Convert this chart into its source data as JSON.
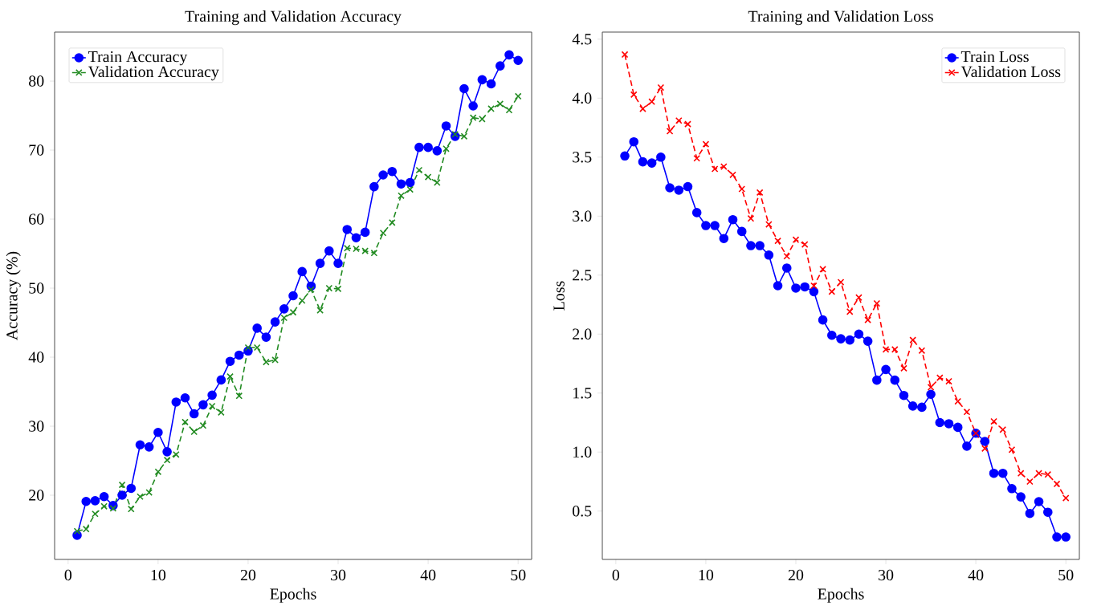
{
  "chart_data": [
    {
      "type": "line",
      "title": "Training and Validation Accuracy",
      "xlabel": "Epochs",
      "ylabel": "Accuracy (%)",
      "x": [
        1,
        2,
        3,
        4,
        5,
        6,
        7,
        8,
        9,
        10,
        11,
        12,
        13,
        14,
        15,
        16,
        17,
        18,
        19,
        20,
        21,
        22,
        23,
        24,
        25,
        26,
        27,
        28,
        29,
        30,
        31,
        32,
        33,
        34,
        35,
        36,
        37,
        38,
        39,
        40,
        41,
        42,
        43,
        44,
        45,
        46,
        47,
        48,
        49,
        50
      ],
      "series": [
        {
          "name": "Train Accuracy",
          "color": "#0000ff",
          "marker": "circle",
          "line_style": "solid",
          "values": [
            14.2,
            19.1,
            19.2,
            19.8,
            18.5,
            20.0,
            21.0,
            27.3,
            27.0,
            29.1,
            26.3,
            33.5,
            34.1,
            31.8,
            33.1,
            34.5,
            36.7,
            39.4,
            40.3,
            40.9,
            44.2,
            42.9,
            45.1,
            47.0,
            48.9,
            52.4,
            50.3,
            53.6,
            55.4,
            53.6,
            58.5,
            57.3,
            58.1,
            64.7,
            66.4,
            66.9,
            65.1,
            65.3,
            70.4,
            70.4,
            69.9,
            73.5,
            72.0,
            78.9,
            76.4,
            80.2,
            79.6,
            82.2,
            83.8,
            83.0
          ]
        },
        {
          "name": "Validation Accuracy",
          "color": "#228b22",
          "marker": "cross",
          "line_style": "dashed",
          "values": [
            14.8,
            15.1,
            17.3,
            18.4,
            18.1,
            21.5,
            18.0,
            19.8,
            20.4,
            23.4,
            25.1,
            25.9,
            30.6,
            29.2,
            30.1,
            32.9,
            32.0,
            37.2,
            34.4,
            41.4,
            41.4,
            39.3,
            39.6,
            45.7,
            46.5,
            48.2,
            49.8,
            46.8,
            50.0,
            49.9,
            55.8,
            55.7,
            55.4,
            55.1,
            58.0,
            59.5,
            63.4,
            64.3,
            67.1,
            66.1,
            65.3,
            70.2,
            72.3,
            72.0,
            74.7,
            74.5,
            76.0,
            76.7,
            75.8,
            77.8
          ]
        }
      ],
      "xlim": [
        -1.5,
        51.5
      ],
      "ylim": [
        10.7,
        87.1
      ],
      "xticks": [
        0,
        10,
        20,
        30,
        40,
        50
      ],
      "yticks": [
        20,
        30,
        40,
        50,
        60,
        70,
        80
      ],
      "legend": "top left",
      "grid": false
    },
    {
      "type": "line",
      "title": "Training and Validation Loss",
      "xlabel": "Epochs",
      "ylabel": "Loss",
      "x": [
        1,
        2,
        3,
        4,
        5,
        6,
        7,
        8,
        9,
        10,
        11,
        12,
        13,
        14,
        15,
        16,
        17,
        18,
        19,
        20,
        21,
        22,
        23,
        24,
        25,
        26,
        27,
        28,
        29,
        30,
        31,
        32,
        33,
        34,
        35,
        36,
        37,
        38,
        39,
        40,
        41,
        42,
        43,
        44,
        45,
        46,
        47,
        48,
        49,
        50
      ],
      "series": [
        {
          "name": "Train Loss",
          "color": "#0000ff",
          "marker": "circle",
          "line_style": "solid",
          "values": [
            3.51,
            3.63,
            3.46,
            3.45,
            3.5,
            3.24,
            3.22,
            3.25,
            3.03,
            2.92,
            2.92,
            2.81,
            2.97,
            2.87,
            2.75,
            2.75,
            2.67,
            2.41,
            2.56,
            2.39,
            2.4,
            2.36,
            2.12,
            1.99,
            1.96,
            1.95,
            2.0,
            1.94,
            1.61,
            1.7,
            1.61,
            1.48,
            1.39,
            1.38,
            1.49,
            1.25,
            1.24,
            1.21,
            1.05,
            1.16,
            1.09,
            0.82,
            0.82,
            0.69,
            0.62,
            0.48,
            0.58,
            0.49,
            0.28,
            0.28
          ]
        },
        {
          "name": "Validation Loss",
          "color": "#ff0000",
          "marker": "cross",
          "line_style": "dashed",
          "values": [
            4.37,
            4.03,
            3.91,
            3.97,
            4.09,
            3.72,
            3.81,
            3.78,
            3.49,
            3.61,
            3.4,
            3.42,
            3.35,
            3.23,
            2.98,
            3.2,
            2.93,
            2.79,
            2.66,
            2.8,
            2.76,
            2.41,
            2.55,
            2.36,
            2.44,
            2.19,
            2.31,
            2.12,
            2.26,
            1.87,
            1.87,
            1.71,
            1.95,
            1.86,
            1.55,
            1.63,
            1.6,
            1.43,
            1.34,
            1.16,
            1.03,
            1.26,
            1.19,
            1.02,
            0.82,
            0.75,
            0.82,
            0.81,
            0.73,
            0.61
          ]
        }
      ],
      "xlim": [
        -1.5,
        51.5
      ],
      "ylim": [
        0.09,
        4.56
      ],
      "xticks": [
        0,
        10,
        20,
        30,
        40,
        50
      ],
      "yticks": [
        0.5,
        {
          "value": 1.0,
          "label": "1.0"
        },
        1.5,
        {
          "value": 2.0,
          "label": "2.0"
        },
        2.5,
        {
          "value": 3.0,
          "label": "3.0"
        },
        3.5,
        {
          "value": 4.0,
          "label": "4.0"
        },
        4.5
      ],
      "legend": "top right",
      "grid": false
    }
  ]
}
